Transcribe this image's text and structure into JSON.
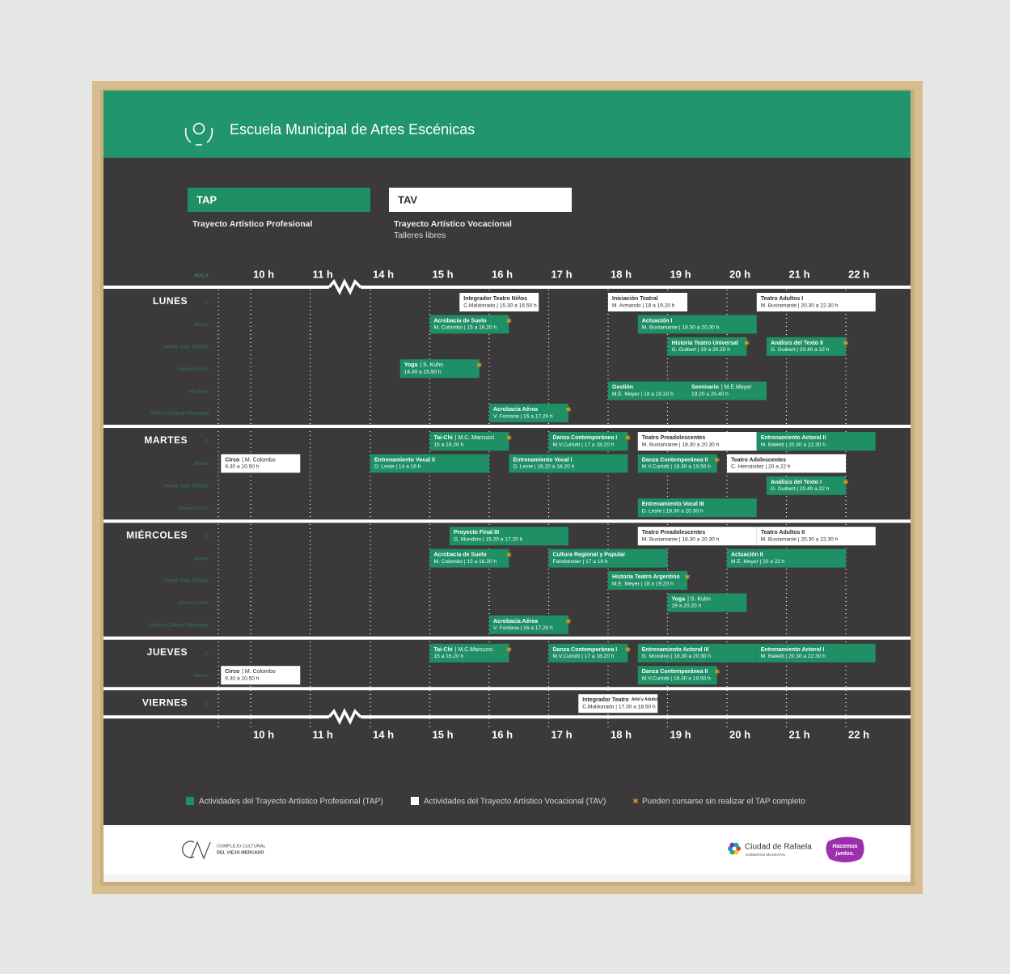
{
  "header": {
    "title": "Escuela Municipal de Artes Escénicas"
  },
  "programs": [
    {
      "code": "TAP",
      "name": "Trayecto Artístico Profesional",
      "type": "tap"
    },
    {
      "code": "TAV",
      "name": "Trayecto Artístico Vocacional",
      "subtitle": "Talleres libres",
      "type": "tav"
    }
  ],
  "schedule": {
    "room_header": "AULA",
    "hours": [
      "10 h",
      "11 h",
      "14 h",
      "15 h",
      "16 h",
      "17 h",
      "18 h",
      "19 h",
      "20 h",
      "21 h",
      "22 h"
    ],
    "days": [
      {
        "name": "LUNES",
        "rooms": [
          {
            "label": "C",
            "events": [
              {
                "type": "tav",
                "name": "Integrador Teatro Niños",
                "detail": "C.Maldonado | 15.30 a 16.50 h"
              },
              {
                "type": "tav",
                "name": "Iniciación Teatral",
                "detail": "M. Armando | 18 a 19.20 h"
              },
              {
                "type": "tav",
                "name": "Teatro Adultos I",
                "detail": "M. Bustamante | 20.30 a 22.30 h"
              }
            ]
          },
          {
            "label": "Anexo",
            "events": [
              {
                "type": "tap",
                "name": "Acrobacia de Suelo",
                "detail": "M. Colombo | 15 a 16.20 h",
                "star": true
              },
              {
                "type": "tap",
                "name": "Actuación I",
                "detail": "M. Bustamante | 18.30 a 20.30 h"
              }
            ]
          },
          {
            "label": "Anexo Sala Teórica",
            "events": [
              {
                "type": "tap",
                "name": "Historia Teatro Universal",
                "detail": "G. Guibert | 19 a 20.20 h",
                "star": true
              },
              {
                "type": "tap",
                "name": "Análisis del Texto II",
                "detail": "G. Guibert | 20.40 a 22 h",
                "star": true
              }
            ]
          },
          {
            "label": "Anexo Coros",
            "events": [
              {
                "type": "tap",
                "name": "Yoga",
                "by": "| S. Kuhn",
                "detail": "14.30 a 15.50 h",
                "star": true
              }
            ]
          },
          {
            "label": "A3 Liceo",
            "events": [
              {
                "type": "tap",
                "name": "Gestión",
                "detail": "M.E. Meyer | 18 a 19.20 h"
              },
              {
                "type": "tap",
                "name": "Seminario",
                "by": "| M.E.Meyer",
                "detail": "19.20 a 20.40 h"
              }
            ]
          },
          {
            "label": "Centro Cultural Municipal",
            "events": [
              {
                "type": "tap",
                "name": "Acrobacia Aérea",
                "detail": "V. Fontana | 16 a 17.20 h",
                "star": true
              }
            ]
          }
        ]
      },
      {
        "name": "MARTES",
        "rooms": [
          {
            "label": "C",
            "events": [
              {
                "type": "tap",
                "name": "Tai-Chi",
                "by": "| M.C. Marcucci",
                "detail": "15 a 16.20 h",
                "star": true
              },
              {
                "type": "tap",
                "name": "Danza Contemporánea I",
                "detail": "M.V.Curiotti | 17 a 18.20 h",
                "star": true
              },
              {
                "type": "tav",
                "name": "Teatro Preadolescentes",
                "detail": "M. Bustamante | 18.30 a 20.30 h"
              },
              {
                "type": "tap",
                "name": "Entrenamiento Actoral II",
                "detail": "M. Bailetti | 20.30 a 22.30 h"
              }
            ]
          },
          {
            "label": "Anexo",
            "events": [
              {
                "type": "tav",
                "name": "Circo",
                "by": "| M. Colombo",
                "detail": "9.30 a 10.50 h"
              },
              {
                "type": "tap",
                "name": "Entrenamiento Vocal II",
                "detail": "D. Leste | 14 a 16 h"
              },
              {
                "type": "tap",
                "name": "Entrenamiento Vocal I",
                "detail": "D. Leste | 16.20 a 18.20 h"
              },
              {
                "type": "tap",
                "name": "Danza Contemporánea II",
                "detail": "M.V.Curiotti | 18.30 a 19.50 h",
                "star": true
              },
              {
                "type": "tav",
                "name": "Teatro Adolescentes",
                "detail": "C. Hernández | 20 a 22 h"
              }
            ]
          },
          {
            "label": "Anexo Sala Teórica",
            "events": [
              {
                "type": "tap",
                "name": "Análisis del Texto I",
                "detail": "G. Guibert | 20.40 a 22 h",
                "star": true
              }
            ]
          },
          {
            "label": "Anexo Coros",
            "events": [
              {
                "type": "tap",
                "name": "Entrenamiento Vocal III",
                "detail": "D. Leste | 18.30 a 20.30 h"
              }
            ]
          }
        ]
      },
      {
        "name": "MIÉRCOLES",
        "rooms": [
          {
            "label": "C",
            "events": [
              {
                "type": "tap",
                "name": "Proyecto Final III",
                "detail": "G. Mondino | 15.20 a 17.20 h"
              },
              {
                "type": "tav",
                "name": "Teatro Preadolescentes",
                "detail": "M. Bustamante | 18.30 a 20.30 h"
              },
              {
                "type": "tav",
                "name": "Teatro Adultos II",
                "detail": "M. Bustamante | 20.30 a 22.30 h"
              }
            ]
          },
          {
            "label": "Anexo",
            "events": [
              {
                "type": "tap",
                "name": "Acrobacia de Suelo",
                "detail": "M. Colombo | 15 a 16.20 h",
                "star": true
              },
              {
                "type": "tap",
                "name": "Cultura Regional y Popular",
                "detail": "Fahsbender | 17 a 19 h"
              },
              {
                "type": "tap",
                "name": "Actuación II",
                "detail": "M.E. Meyer | 20 a 22 h"
              }
            ]
          },
          {
            "label": "Anexo Sala Teórica",
            "events": [
              {
                "type": "tap",
                "name": "Historia Teatro Argentino",
                "detail": "M.E. Meyer | 18 a 19.20 h",
                "star": true
              }
            ]
          },
          {
            "label": "Anexo Coros",
            "events": [
              {
                "type": "tap",
                "name": "Yoga",
                "by": "| S. Kuhn",
                "detail": "19 a 20.20 h"
              }
            ]
          },
          {
            "label": "Centro Cultural Municipal",
            "events": [
              {
                "type": "tap",
                "name": "Acrobacia Aérea",
                "detail": "V. Fontana | 16 a 17.20 h",
                "star": true
              }
            ]
          }
        ]
      },
      {
        "name": "JUEVES",
        "rooms": [
          {
            "label": "C",
            "events": [
              {
                "type": "tap",
                "name": "Tai-Chi",
                "by": "| M.C.Marcucci",
                "detail": "15 a 16.20 h",
                "star": true
              },
              {
                "type": "tap",
                "name": "Danza Contemporánea I",
                "detail": "M.V.Curiotti | 17 a 18.20 h",
                "star": true
              },
              {
                "type": "tap",
                "name": "Entrenamiento Actoral III",
                "detail": "G. Mondino | 18.30 a 20.30 h"
              },
              {
                "type": "tap",
                "name": "Entrenamiento Actoral I",
                "detail": "M. Bailetti | 20.30 a 22.30 h"
              }
            ]
          },
          {
            "label": "Anexo",
            "events": [
              {
                "type": "tav",
                "name": "Circo",
                "by": "| M. Colombo",
                "detail": "9.30 a 10.50 h"
              },
              {
                "type": "tap",
                "name": "Danza Contemporánea II",
                "detail": "M.V.Curiotti | 18.30 a 19.50 h",
                "star": true
              }
            ]
          }
        ]
      },
      {
        "name": "VIERNES",
        "rooms": [
          {
            "label": "C",
            "events": [
              {
                "type": "tav",
                "name": "Integrador Teatro",
                "note": "Adol y Adultos",
                "detail": "C.Maldonado | 17.30 a 18.50 h"
              }
            ]
          }
        ]
      }
    ]
  },
  "legend": {
    "tap": "Actividades del Trayecto Artístico Profesional (TAP)",
    "tav": "Actividades del Trayecto Artístico Vocacional (TAV)",
    "star": "Pueden cursarse sin realizar el TAP completo"
  },
  "footer": {
    "complejo": [
      "COMPLEJO CULTURAL",
      "DEL VIEJO MERCADO"
    ],
    "ciudad": {
      "name": "Ciudad de Rafaela",
      "sub": "GOBIERNO MUNICIPAL"
    },
    "badge": [
      "Hacemos",
      "juntos."
    ]
  }
}
